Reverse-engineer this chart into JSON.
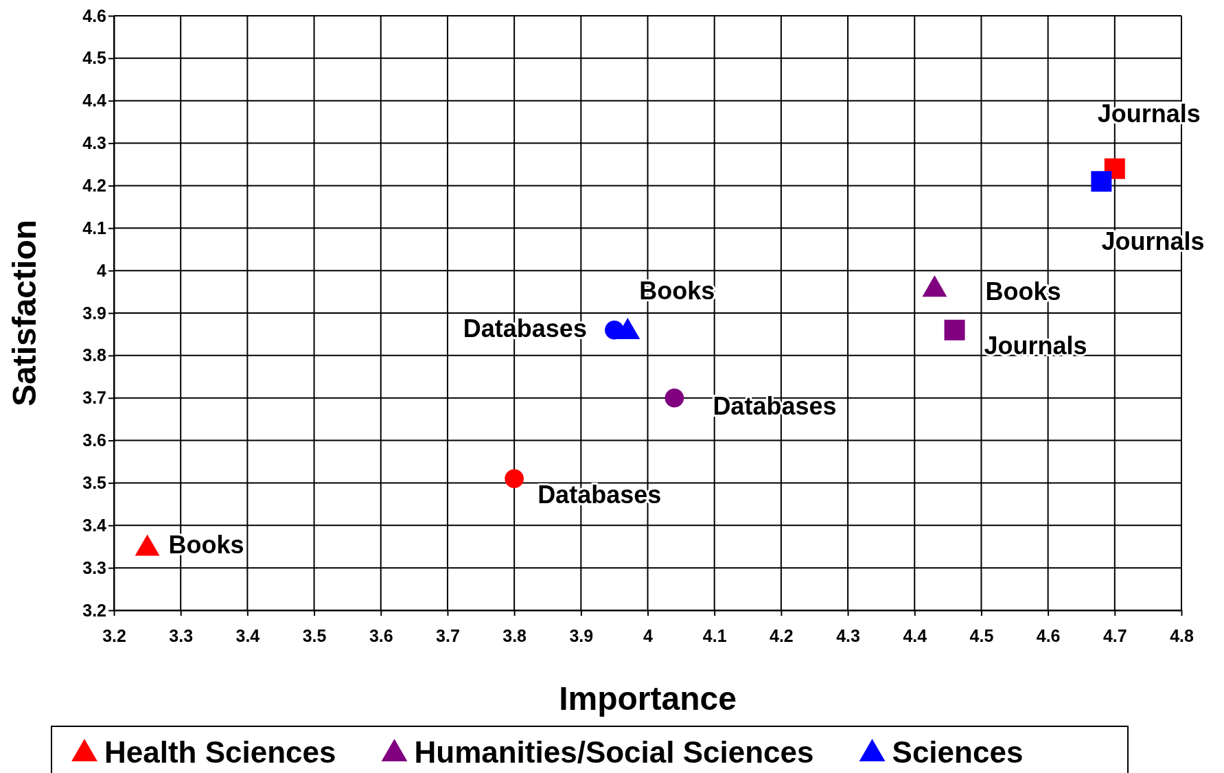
{
  "chart_data": {
    "type": "scatter",
    "xlabel": "Importance",
    "ylabel": "Satisfaction",
    "xlim": [
      3.2,
      4.8
    ],
    "xticks": [
      3.2,
      3.3,
      3.4,
      3.5,
      3.6,
      3.7,
      3.8,
      3.9,
      4,
      4.1,
      4.2,
      4.3,
      4.4,
      4.5,
      4.6,
      4.7,
      4.8
    ],
    "ylim": [
      3.2,
      4.6
    ],
    "yticks": [
      3.2,
      3.3,
      3.4,
      3.5,
      3.6,
      3.7,
      3.8,
      3.9,
      4,
      4.1,
      4.2,
      4.3,
      4.4,
      4.5,
      4.6
    ],
    "grid": true,
    "legend": "bottom",
    "series": [
      {
        "name": "Health Sciences",
        "color": "#ff0000",
        "marker": "triangle",
        "x": [
          3.25
        ],
        "values": [
          3.35
        ]
      },
      {
        "color": "#ff0000",
        "marker": "circle",
        "x": [
          3.8
        ],
        "values": [
          3.51
        ]
      },
      {
        "color": "#ff0000",
        "marker": "square",
        "x": [
          4.7
        ],
        "values": [
          4.24
        ]
      },
      {
        "name": "Humanities/Social Sciences",
        "color": "#800080",
        "marker": "triangle",
        "x": [
          4.43
        ],
        "values": [
          3.96
        ]
      },
      {
        "color": "#800080",
        "marker": "square",
        "x": [
          4.46
        ],
        "values": [
          3.86
        ]
      },
      {
        "color": "#800080",
        "marker": "circle",
        "x": [
          4.04
        ],
        "values": [
          3.7
        ]
      },
      {
        "color": "#0000ff",
        "marker": "circle",
        "x": [
          3.95
        ],
        "values": [
          3.86
        ]
      },
      {
        "name": "Sciences",
        "color": "#0000ff",
        "marker": "triangle",
        "x": [
          3.97
        ],
        "values": [
          3.86
        ]
      },
      {
        "color": "#0000ff",
        "marker": "square",
        "x": [
          4.68
        ],
        "values": [
          4.21
        ]
      }
    ],
    "annotations": [
      {
        "text": "Books",
        "x": 3.25,
        "y": 3.35
      },
      {
        "text": "Databases",
        "x": 3.8,
        "y": 3.51
      },
      {
        "text": "Journals",
        "x": 4.7,
        "y": 4.24
      },
      {
        "text": "Books",
        "x": 4.43,
        "y": 3.96
      },
      {
        "text": "Journals",
        "x": 4.46,
        "y": 3.86
      },
      {
        "text": "Databases",
        "x": 4.04,
        "y": 3.7
      },
      {
        "text": "Databases",
        "x": 3.95,
        "y": 3.86
      },
      {
        "text": "Books",
        "x": 3.97,
        "y": 3.86
      },
      {
        "text": "Journals",
        "x": 4.68,
        "y": 4.21
      }
    ]
  }
}
